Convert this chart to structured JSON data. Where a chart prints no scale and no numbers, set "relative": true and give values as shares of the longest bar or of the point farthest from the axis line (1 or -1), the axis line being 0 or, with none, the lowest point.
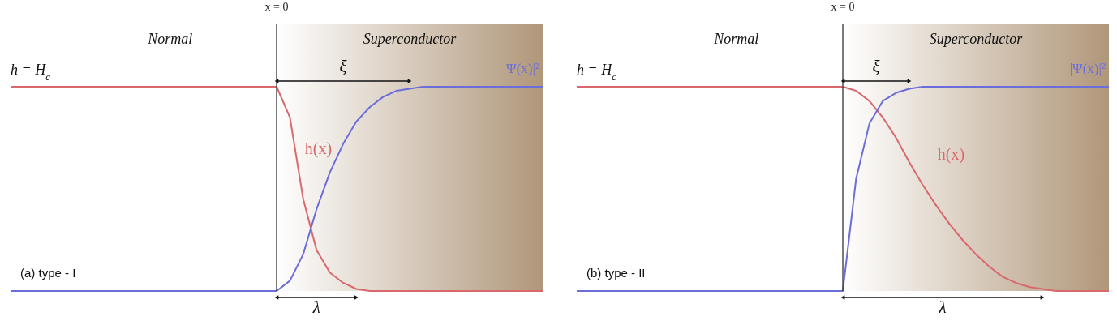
{
  "chart_data": [
    {
      "type": "line",
      "relative": true,
      "categories": [
        null,
        null,
        null,
        null,
        null,
        null,
        null,
        null,
        null,
        null,
        null,
        null,
        null,
        null,
        null,
        null,
        null,
        null,
        null,
        null,
        null,
        null,
        null,
        null,
        null,
        null,
        null,
        null,
        null,
        null,
        null,
        null,
        null,
        null,
        null,
        null,
        null,
        null,
        null,
        null,
        null
      ],
      "series": [
        {
          "name": "h(x)",
          "color": "#d9686c",
          "values": [
            1,
            1,
            1,
            1,
            1,
            1,
            1,
            1,
            1,
            1,
            1,
            1,
            1,
            1,
            1,
            1,
            1,
            1,
            1,
            1,
            1,
            0.85,
            0.45,
            0.2,
            0.09,
            0.04,
            0.01,
            0,
            0,
            0,
            0,
            0,
            0,
            0,
            0,
            0,
            0,
            0,
            0,
            0,
            0
          ]
        },
        {
          "name": "|Ψ(x)|²",
          "color": "#6b6ddb",
          "values": [
            0,
            0,
            0,
            0,
            0,
            0,
            0,
            0,
            0,
            0,
            0,
            0,
            0,
            0,
            0,
            0,
            0,
            0,
            0,
            0,
            0,
            0.05,
            0.18,
            0.4,
            0.58,
            0.72,
            0.83,
            0.9,
            0.95,
            0.98,
            0.99,
            1,
            1,
            1,
            1,
            1,
            1,
            1,
            1,
            1,
            1
          ]
        }
      ],
      "ref_lines": [
        {
          "axis": "x",
          "label": "x = 0",
          "color": "#333333"
        }
      ],
      "annotations": [
        "Normal",
        "Superconductor",
        "h = H$_{c}$",
        "(a) type - I",
        "ξ",
        "λ"
      ]
    },
    {
      "type": "line",
      "relative": true,
      "categories": [
        null,
        null,
        null,
        null,
        null,
        null,
        null,
        null,
        null,
        null,
        null,
        null,
        null,
        null,
        null,
        null,
        null,
        null,
        null,
        null,
        null,
        null,
        null,
        null,
        null,
        null,
        null,
        null,
        null,
        null,
        null,
        null,
        null,
        null,
        null,
        null,
        null,
        null,
        null,
        null,
        null
      ],
      "series": [
        {
          "name": "h(x)",
          "color": "#d9686c",
          "values": [
            1,
            1,
            1,
            1,
            1,
            1,
            1,
            1,
            1,
            1,
            1,
            1,
            1,
            1,
            1,
            1,
            1,
            1,
            1,
            1,
            1,
            0.98,
            0.93,
            0.85,
            0.75,
            0.63,
            0.52,
            0.42,
            0.33,
            0.25,
            0.18,
            0.12,
            0.07,
            0.04,
            0.02,
            0.01,
            0,
            0,
            0,
            0,
            0
          ]
        },
        {
          "name": "|Ψ(x)|²",
          "color": "#6b6ddb",
          "values": [
            0,
            0,
            0,
            0,
            0,
            0,
            0,
            0,
            0,
            0,
            0,
            0,
            0,
            0,
            0,
            0,
            0,
            0,
            0,
            0,
            0,
            0.55,
            0.82,
            0.93,
            0.97,
            0.99,
            1,
            1,
            1,
            1,
            1,
            1,
            1,
            1,
            1,
            1,
            1,
            1,
            1,
            1,
            1
          ]
        }
      ],
      "ref_lines": [
        {
          "axis": "x",
          "label": "x = 0",
          "color": "#333333"
        }
      ],
      "annotations": [
        "Normal",
        "Superconductor",
        "h = H$_{c}$",
        "(b) type - II",
        "ξ",
        "λ"
      ]
    }
  ]
}
